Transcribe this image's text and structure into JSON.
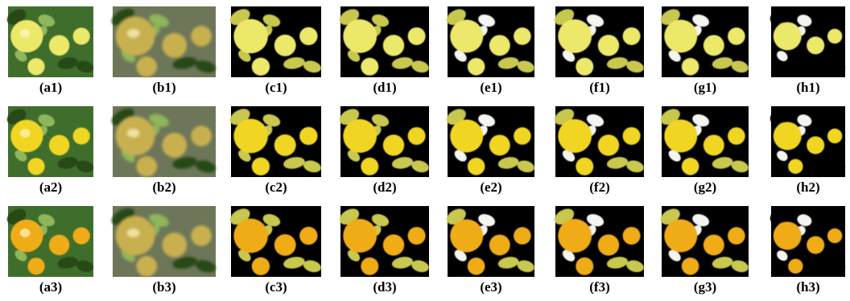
{
  "panels": [
    [
      "(a1)",
      "(b1)",
      "(c1)",
      "(d1)",
      "(e1)",
      "(f1)",
      "(g1)",
      "(h1)"
    ],
    [
      "(a2)",
      "(b2)",
      "(c2)",
      "(d2)",
      "(e2)",
      "(f2)",
      "(g2)",
      "(h2)"
    ],
    [
      "(a3)",
      "(b3)",
      "(c3)",
      "(d3)",
      "(e3)",
      "(f3)",
      "(g3)",
      "(h3)"
    ]
  ]
}
